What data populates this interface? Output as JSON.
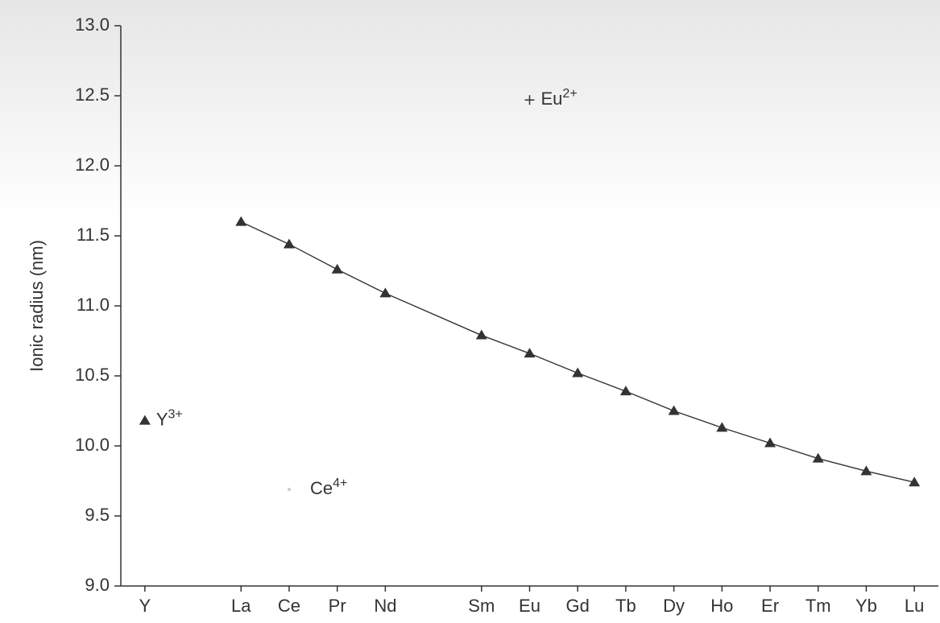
{
  "chart_data": {
    "type": "line",
    "ylabel": "Ionic radius (nm)",
    "xlim": [
      -0.5,
      16.5
    ],
    "xticks": [
      {
        "value": 0,
        "label": "Y"
      },
      {
        "value": 2,
        "label": "La"
      },
      {
        "value": 3,
        "label": "Ce"
      },
      {
        "value": 4,
        "label": "Pr"
      },
      {
        "value": 5,
        "label": "Nd"
      },
      {
        "value": 7,
        "label": "Sm"
      },
      {
        "value": 8,
        "label": "Eu"
      },
      {
        "value": 9,
        "label": "Gd"
      },
      {
        "value": 10,
        "label": "Tb"
      },
      {
        "value": 11,
        "label": "Dy"
      },
      {
        "value": 12,
        "label": "Ho"
      },
      {
        "value": 13,
        "label": "Er"
      },
      {
        "value": 14,
        "label": "Tm"
      },
      {
        "value": 15,
        "label": "Yb"
      },
      {
        "value": 16,
        "label": "Lu"
      }
    ],
    "ylim": [
      9.0,
      13.0
    ],
    "yticks": [
      {
        "value": 9.0,
        "label": "9.0"
      },
      {
        "value": 9.5,
        "label": "9.5"
      },
      {
        "value": 10.0,
        "label": "10.0"
      },
      {
        "value": 10.5,
        "label": "10.5"
      },
      {
        "value": 11.0,
        "label": "11.0"
      },
      {
        "value": 11.5,
        "label": "11.5"
      },
      {
        "value": 12.0,
        "label": "12.0"
      },
      {
        "value": 12.5,
        "label": "12.5"
      },
      {
        "value": 13.0,
        "label": "13.0"
      }
    ],
    "color": "#333333",
    "series": [
      {
        "label": "Y",
        "sup": "3+",
        "marker": "triangle",
        "line": false,
        "x": [
          0
        ],
        "values": [
          10.18
        ]
      },
      {
        "marker": "triangle",
        "line": true,
        "x": [
          2,
          3,
          4,
          5,
          7,
          8,
          9,
          10,
          11,
          12,
          13,
          14,
          15,
          16
        ],
        "values": [
          11.6,
          11.44,
          11.26,
          11.09,
          10.79,
          10.66,
          10.52,
          10.39,
          10.25,
          10.13,
          10.02,
          9.91,
          9.82,
          9.74
        ]
      },
      {
        "label": "Eu",
        "sup": "2+",
        "marker": "plus",
        "line": false,
        "x": [
          8
        ],
        "values": [
          12.47
        ]
      },
      {
        "label": "Ce",
        "sup": "4+",
        "marker": "dot",
        "line": false,
        "x": [
          3
        ],
        "values": [
          9.69
        ]
      }
    ]
  }
}
